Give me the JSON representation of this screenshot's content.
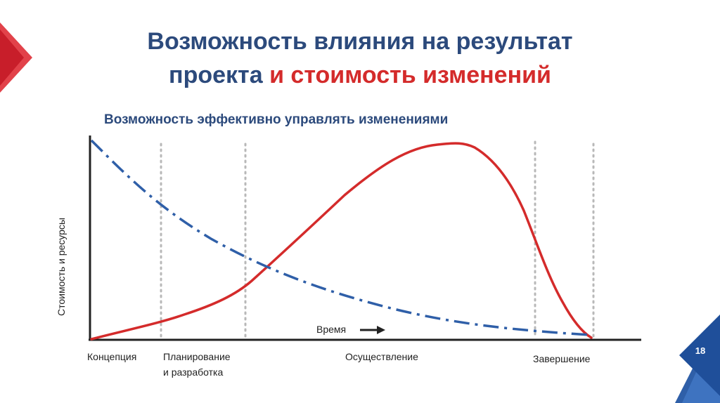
{
  "slide": {
    "title_line1": "Возможность влияния на результат",
    "title_line2_part1": "проекта",
    "title_line2_part2": "и стоимость изменений",
    "subtitle": "Возможность эффективно управлять изменениями",
    "page_number": "18"
  },
  "diagram": {
    "y_axis_label": "Стоимость и ресурсы",
    "time_label": "Время",
    "phases": {
      "concept": "Концепция",
      "planning_line1": "Планирование",
      "planning_line2": "и разработка",
      "execution": "Осуществление",
      "completion": "Завершение"
    },
    "curves": [
      {
        "name": "cost-and-resources-curve",
        "style": "solid",
        "color": "#d42b2b"
      },
      {
        "name": "ability-to-influence-curve",
        "style": "dash-dot",
        "color": "#2f5fa8"
      }
    ],
    "colors": {
      "title_blue": "#2c4a7c",
      "accent_red": "#d42b2b",
      "axis": "#222222",
      "divider_gray": "#b8b8b8"
    }
  }
}
